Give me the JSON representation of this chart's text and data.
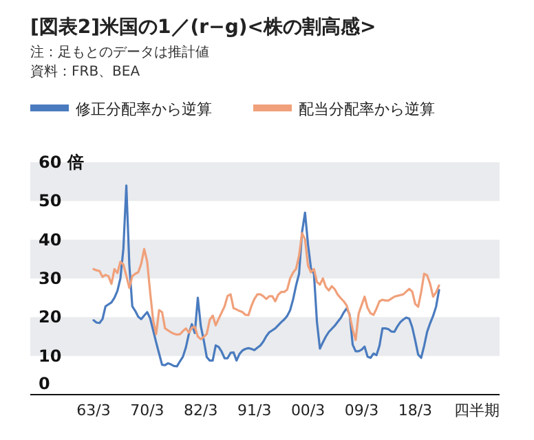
{
  "chart_data": {
    "type": "line",
    "title": "[図表2]米国の1／(r−g)<株の割高感>",
    "subtitle": "注：足もとのデータは推計値",
    "annotations": [
      "資料：FRB、BEA"
    ],
    "xlabel": "四半期",
    "legend": "top left",
    "grid": false,
    "marker": "none",
    "line_style": "solid",
    "ylim": [
      0,
      60
    ],
    "yticks": [
      0,
      10,
      20,
      30,
      40,
      50,
      {
        "value": 60,
        "label": "60 倍"
      }
    ],
    "categories": [
      "63/3",
      null,
      null,
      null,
      null,
      null,
      null,
      null,
      null,
      null,
      null,
      null,
      null,
      null,
      null,
      null,
      null,
      null,
      "70/3",
      null,
      null,
      null,
      null,
      null,
      null,
      null,
      null,
      null,
      null,
      null,
      null,
      null,
      null,
      null,
      null,
      null,
      "82/3",
      null,
      null,
      null,
      null,
      null,
      null,
      null,
      null,
      null,
      null,
      null,
      null,
      null,
      null,
      null,
      null,
      null,
      "91/3",
      null,
      null,
      null,
      null,
      null,
      null,
      null,
      null,
      null,
      null,
      null,
      null,
      null,
      null,
      null,
      null,
      null,
      "00/3",
      null,
      null,
      null,
      null,
      null,
      null,
      null,
      null,
      null,
      null,
      null,
      null,
      null,
      null,
      null,
      null,
      null,
      "09/3",
      null,
      null,
      null,
      null,
      null,
      null,
      null,
      null,
      null,
      null,
      null,
      null,
      null,
      null,
      null,
      null,
      null,
      "18/3",
      null,
      null,
      null,
      null,
      null,
      null,
      null,
      null
    ],
    "bands": [
      {
        "axis": "y",
        "from": 10,
        "to": 20,
        "color": "#e9ebee"
      },
      {
        "axis": "y",
        "from": 30,
        "to": 40,
        "color": "#e9ebee"
      },
      {
        "axis": "y",
        "from": 50,
        "to": 60,
        "color": "#e9ebee"
      }
    ],
    "series": [
      {
        "name": "修正分配率から逆算",
        "color": "#4a7bbf",
        "values": [
          19.2,
          18.6,
          18.5,
          19.5,
          22.8,
          23.3,
          23.8,
          25,
          26.8,
          30,
          37.6,
          54,
          33.5,
          22.8,
          21.6,
          20.1,
          19.5,
          20.4,
          21.3,
          19.7,
          16.6,
          13.5,
          10.6,
          7.7,
          7.6,
          8.1,
          7.8,
          7.4,
          7.3,
          8.6,
          9.8,
          12.2,
          15.7,
          18.2,
          15.9,
          25,
          17.7,
          14,
          9.7,
          8.8,
          8.8,
          12.7,
          12.3,
          11.1,
          9.4,
          9.4,
          10.8,
          10.9,
          8.8,
          10.5,
          11.4,
          11.8,
          12,
          11.8,
          11.5,
          12.1,
          12.7,
          13.7,
          15.1,
          16.1,
          16.6,
          17.1,
          17.9,
          18.7,
          19.4,
          20.3,
          21.8,
          24.6,
          28.2,
          31.2,
          42,
          47,
          38.8,
          32.6,
          31.2,
          18.8,
          11.9,
          13.5,
          15,
          16.2,
          17,
          17.8,
          18.8,
          19.8,
          21.2,
          22.3,
          20.6,
          12.9,
          11.2,
          11.2,
          11.6,
          12.4,
          9.8,
          9.5,
          10.6,
          10.2,
          12.6,
          17.1,
          17.1,
          16.9,
          16.3,
          16.2,
          17.6,
          18.7,
          19.4,
          19.9,
          19.6,
          17.4,
          14,
          10.3,
          9.5,
          12.6,
          16.2,
          18.4,
          20.3,
          22.7,
          27
        ]
      },
      {
        "name": "配当分配率から逆算",
        "color": "#f0a07a",
        "values": [
          32.4,
          32.1,
          31.9,
          30.4,
          30.9,
          30.6,
          28.6,
          32.4,
          31.4,
          34.3,
          33.6,
          30.7,
          27.6,
          30.6,
          31.2,
          31.6,
          33.8,
          37.6,
          34.3,
          26.4,
          19.2,
          15.6,
          21.8,
          21.3,
          17.1,
          16.6,
          16.1,
          15.7,
          15.5,
          15.6,
          16.4,
          17.1,
          16,
          17.3,
          17.5,
          15,
          14.3,
          14.9,
          15.7,
          19.3,
          20.4,
          17.9,
          19.6,
          21.2,
          22.8,
          25.5,
          25.9,
          22.3,
          22,
          21.6,
          21.3,
          20.6,
          20.5,
          22.9,
          24.7,
          25.9,
          25.9,
          25.4,
          24.7,
          25.4,
          25.4,
          24.1,
          25.8,
          26.5,
          26.5,
          27.1,
          30,
          31.5,
          32.5,
          35.9,
          41.7,
          40.1,
          33.3,
          31.6,
          32.4,
          29.1,
          28.4,
          30,
          27.8,
          26.9,
          28,
          27.2,
          25.8,
          24.9,
          24.1,
          23,
          20.4,
          16.8,
          14.1,
          20.9,
          23.1,
          25.3,
          22.4,
          21,
          20.6,
          22.2,
          24.1,
          24.5,
          24.3,
          24.3,
          24.8,
          25.3,
          25.5,
          25.7,
          25.9,
          26.6,
          27.3,
          26.6,
          23.4,
          22.7,
          26.5,
          31.2,
          30.8,
          28.6,
          25.3,
          26.4,
          28.2
        ]
      }
    ]
  }
}
